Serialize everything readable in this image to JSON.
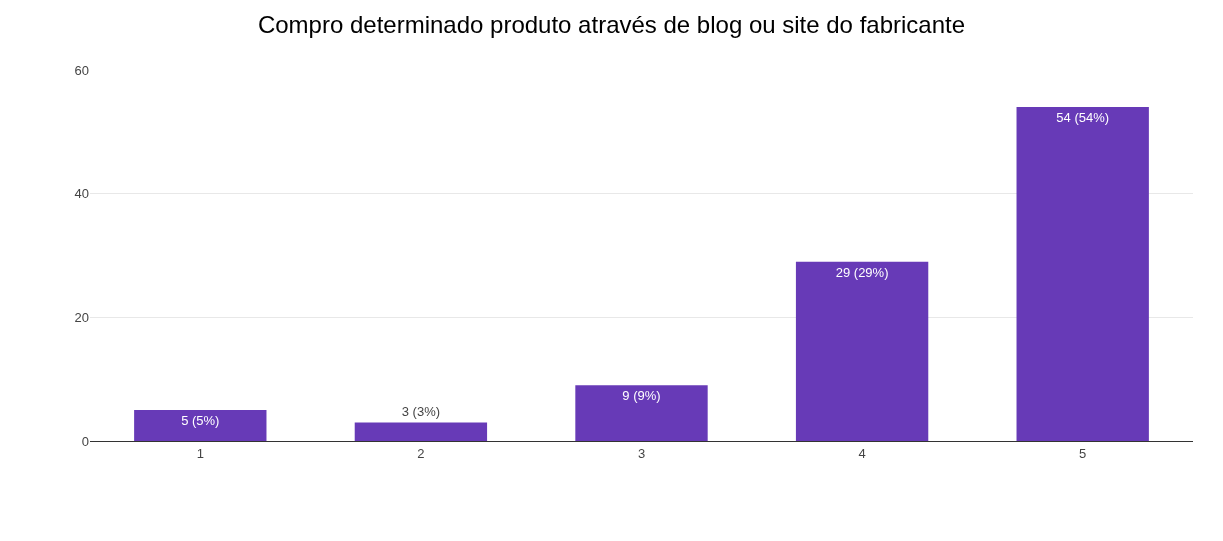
{
  "chart_data": {
    "type": "bar",
    "title": "Compro determinado produto através de blog ou site do fabricante",
    "categories": [
      "1",
      "2",
      "3",
      "4",
      "5"
    ],
    "values": [
      5,
      3,
      9,
      29,
      54
    ],
    "value_labels": [
      "5 (5%)",
      "3 (3%)",
      "9 (9%)",
      "29 (29%)",
      "54 (54%)"
    ],
    "color": "#673ab7",
    "ylim": [
      0,
      60
    ],
    "yticks": [
      0,
      20,
      40,
      60
    ],
    "grid": "y",
    "legend": false
  }
}
